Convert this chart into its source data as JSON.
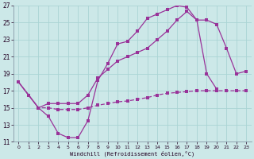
{
  "xlabel": "Windchill (Refroidissement éolien,°C)",
  "bg_color": "#cce8e8",
  "line_color": "#993399",
  "grid_color": "#aad4d4",
  "xlim": [
    -0.5,
    23.5
  ],
  "ylim": [
    11,
    27
  ],
  "yticks": [
    11,
    13,
    15,
    17,
    19,
    21,
    23,
    25,
    27
  ],
  "xticks": [
    0,
    1,
    2,
    3,
    4,
    5,
    6,
    7,
    8,
    9,
    10,
    11,
    12,
    13,
    14,
    15,
    16,
    17,
    18,
    19,
    20,
    21,
    22,
    23
  ],
  "line1_x": [
    0,
    1,
    2,
    3,
    4,
    5,
    6,
    7,
    8,
    9,
    10,
    11,
    12,
    13,
    14,
    15,
    16,
    17,
    18,
    19,
    20,
    21,
    22,
    23
  ],
  "line1_y": [
    18.0,
    16.5,
    15.0,
    14.0,
    12.0,
    11.5,
    11.5,
    13.5,
    18.2,
    20.2,
    22.5,
    22.8,
    24.0,
    25.5,
    26.0,
    26.5,
    27.0,
    26.8,
    25.3,
    19.0,
    17.2,
    null,
    null,
    null
  ],
  "line2_x": [
    0,
    1,
    2,
    3,
    4,
    5,
    6,
    7,
    8,
    9,
    10,
    11,
    12,
    13,
    14,
    15,
    16,
    17,
    18,
    19,
    20,
    21,
    22,
    23
  ],
  "line2_y": [
    18.0,
    16.5,
    15.0,
    15.5,
    15.5,
    15.5,
    15.5,
    16.5,
    18.5,
    19.5,
    20.5,
    21.0,
    21.5,
    22.0,
    23.0,
    24.0,
    25.3,
    26.3,
    25.3,
    25.3,
    24.8,
    22.0,
    19.0,
    19.3
  ],
  "line3_x": [
    0,
    1,
    2,
    3,
    4,
    5,
    6,
    7,
    8,
    9,
    10,
    11,
    12,
    13,
    14,
    15,
    16,
    17,
    18,
    19,
    20,
    21,
    22,
    23
  ],
  "line3_y": [
    18.0,
    16.5,
    15.0,
    15.0,
    14.8,
    14.8,
    14.8,
    15.0,
    15.3,
    15.5,
    15.7,
    15.8,
    16.0,
    16.2,
    16.5,
    16.7,
    16.8,
    16.9,
    17.0,
    17.0,
    17.0,
    17.0,
    17.0,
    17.0
  ]
}
